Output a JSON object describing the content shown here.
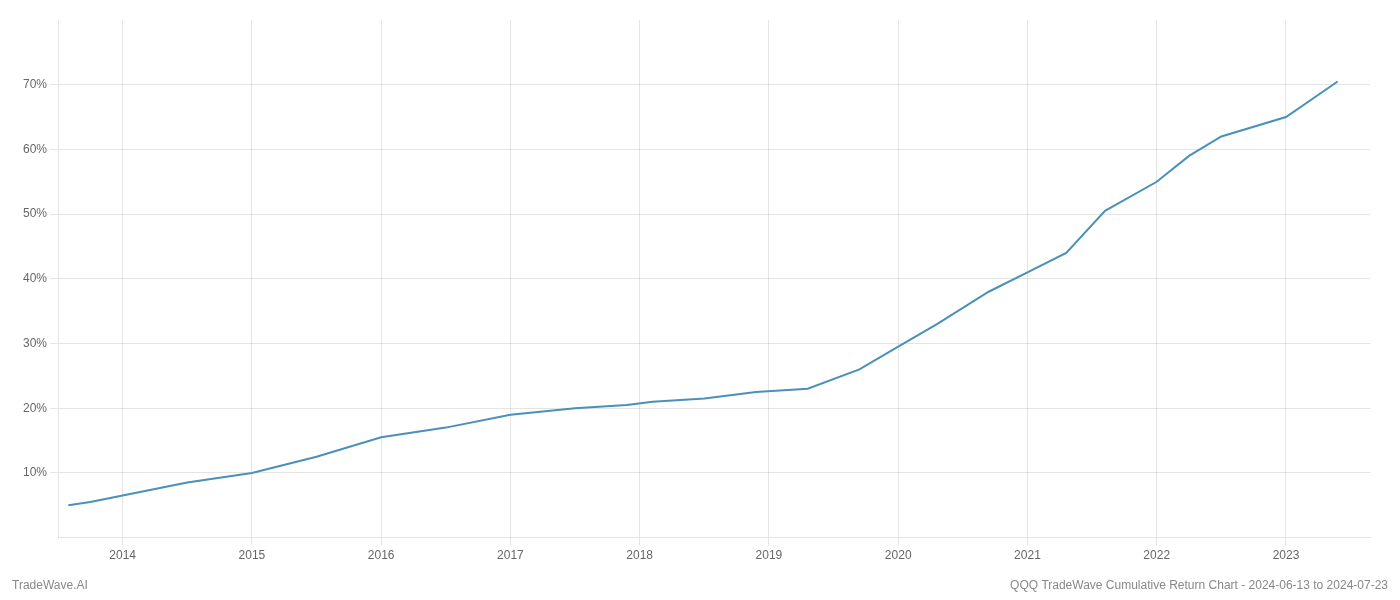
{
  "chart_data": {
    "type": "line",
    "title": "QQQ TradeWave Cumulative Return Chart - 2024-06-13 to 2024-07-23",
    "annotations": [
      "TradeWave.AI"
    ],
    "x": [
      2013.58,
      2013.75,
      2014.0,
      2014.5,
      2015.0,
      2015.5,
      2016.0,
      2016.5,
      2017.0,
      2017.5,
      2017.9,
      2018.1,
      2018.5,
      2018.9,
      2019.3,
      2019.7,
      2020.0,
      2020.3,
      2020.7,
      2021.0,
      2021.3,
      2021.6,
      2022.0,
      2022.25,
      2022.5,
      2023.0,
      2023.4
    ],
    "values": [
      5.0,
      5.5,
      6.5,
      8.5,
      10.0,
      12.5,
      15.5,
      17.0,
      19.0,
      20.0,
      20.5,
      21.0,
      21.5,
      22.5,
      23.0,
      26.0,
      29.5,
      33.0,
      38.0,
      41.0,
      44.0,
      50.5,
      55.0,
      59.0,
      62.0,
      65.0,
      70.5
    ],
    "color": "#4a90b8",
    "xlim": [
      2013.5,
      2023.65
    ],
    "xticks": [
      2014,
      2015,
      2016,
      2017,
      2018,
      2019,
      2020,
      2021,
      2022,
      2023
    ],
    "ylim": [
      0,
      80
    ],
    "yticks": [
      {
        "value": 10,
        "label": "10%"
      },
      {
        "value": 20,
        "label": "20%"
      },
      {
        "value": 30,
        "label": "30%"
      },
      {
        "value": 40,
        "label": "40%"
      },
      {
        "value": 50,
        "label": "50%"
      },
      {
        "value": 60,
        "label": "60%"
      },
      {
        "value": 70,
        "label": "70%"
      }
    ],
    "grid": true
  }
}
